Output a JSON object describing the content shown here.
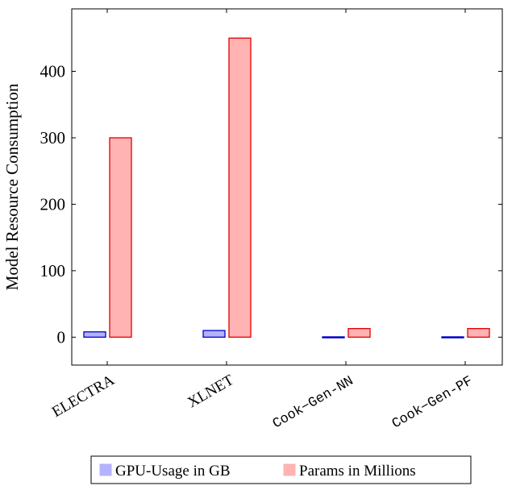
{
  "chart_data": {
    "type": "bar",
    "categories": [
      "ELECTRA",
      "XLNET",
      "Cook−Gen-NN",
      "Cook−Gen-PF"
    ],
    "series": [
      {
        "name": "GPU-Usage in GB",
        "values": [
          8,
          10,
          0.5,
          0.5
        ],
        "fill": "#b3b3ff",
        "stroke": "#0000cc"
      },
      {
        "name": "Params in Millions",
        "values": [
          300,
          450,
          13,
          13
        ],
        "fill": "#ffb3b3",
        "stroke": "#e60000"
      }
    ],
    "yticks": [
      0,
      100,
      200,
      300,
      400
    ],
    "ylabel": "Model Resource Consumption",
    "xlabel": "",
    "title": "",
    "ylim": [
      -42,
      494
    ],
    "grid": false,
    "legend_position": "bottom-center"
  }
}
